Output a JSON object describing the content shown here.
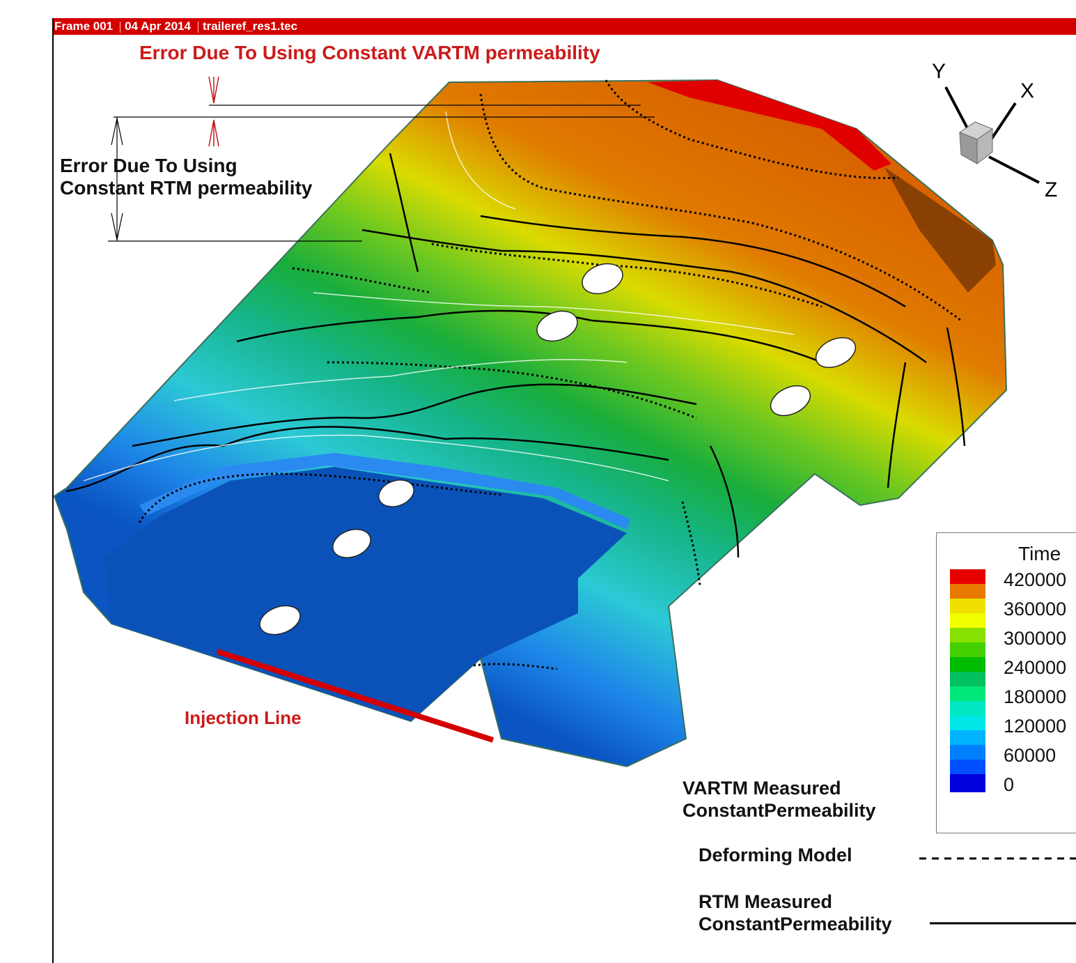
{
  "frame_bar": {
    "frame": "Frame 001",
    "date": "04 Apr 2014",
    "file": "traileref_res1.tec"
  },
  "annotations": {
    "vartm_error": "Error Due To Using Constant VARTM permeability",
    "rtm_error_line1": "Error Due To Using",
    "rtm_error_line2": "Constant RTM permeability",
    "injection_line": "Injection Line"
  },
  "axes_triad": {
    "y": "Y",
    "x": "X",
    "z": "Z"
  },
  "contour_legend": {
    "title": "Time",
    "levels": [
      {
        "label": "420000",
        "color": "#e60000"
      },
      {
        "label": "360000",
        "color": "#e87800"
      },
      {
        "label": "300000",
        "color": "#f0e000"
      },
      {
        "label": "240000",
        "color": "#88e000"
      },
      {
        "label": "180000",
        "color": "#00bb00"
      },
      {
        "label": "120000",
        "color": "#00e87a"
      },
      {
        "label": "60000",
        "color": "#00e6e6"
      },
      {
        "label": "0",
        "color": "#0080ff"
      },
      {
        "label": "",
        "color": "#0000dd"
      }
    ]
  },
  "line_legend": {
    "vartm_line1": "VARTM Measured",
    "vartm_line2": "ConstantPermeability",
    "deforming": "Deforming Model",
    "rtm_line1": "RTM Measured",
    "rtm_line2": "ConstantPermeability"
  }
}
